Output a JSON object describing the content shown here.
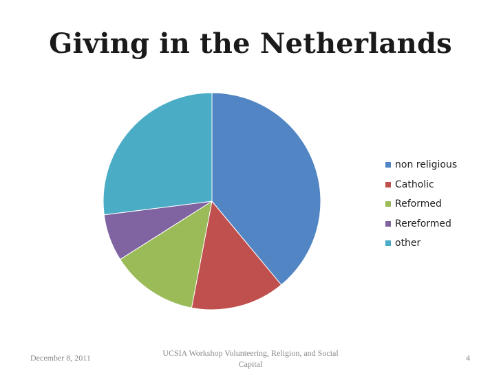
{
  "slide": {
    "title": "Giving in the Netherlands"
  },
  "chart_data": {
    "type": "pie",
    "title": "",
    "categories": [
      "non religious",
      "Catholic",
      "Reformed",
      "Rereformed",
      "other"
    ],
    "values": [
      39,
      14,
      13,
      7,
      27
    ],
    "colors": [
      "#5285c3",
      "#c0504d",
      "#9bbb59",
      "#8064a2",
      "#4bacc6"
    ],
    "start_angle_deg": 0,
    "direction": "clockwise",
    "legend": {
      "placement": "right",
      "entries": [
        "non religious",
        "Catholic",
        "Reformed",
        "Rereformed",
        "other"
      ]
    }
  },
  "footer": {
    "date": "December 8, 2011",
    "center_text": "UCSIA Workshop Volunteering, Religion, and Social Capital",
    "page_number": "4"
  }
}
